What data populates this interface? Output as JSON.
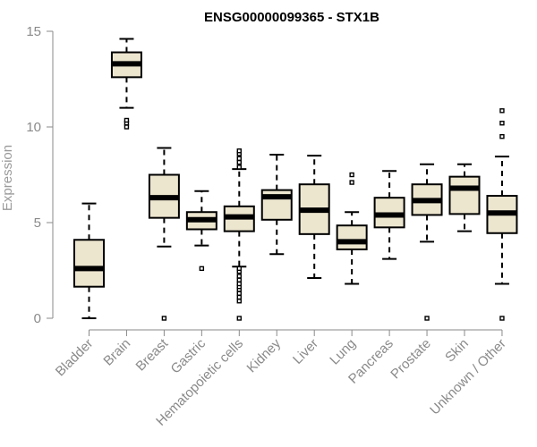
{
  "chart_data": {
    "type": "boxplot",
    "title": "ENSG00000099365 - STX1B",
    "xlabel": "",
    "ylabel": "Expression",
    "ylim": [
      0,
      15
    ],
    "yticks": [
      0,
      5,
      10,
      15
    ],
    "grid": false,
    "colors": {
      "box_fill": "#ede6cf",
      "stroke": "#000000",
      "axis": "#8a8a8a"
    },
    "categories": [
      "Bladder",
      "Brain",
      "Breast",
      "Gastric",
      "Hematopoietic cells",
      "Kidney",
      "Liver",
      "Lung",
      "Pancreas",
      "Prostate",
      "Skin",
      "Unknown / Other"
    ],
    "boxes": [
      {
        "min": 0.0,
        "q1": 1.65,
        "median": 2.6,
        "q3": 4.1,
        "max": 6.0,
        "outliers": []
      },
      {
        "min": 11.0,
        "q1": 12.6,
        "median": 13.3,
        "q3": 13.9,
        "max": 14.6,
        "outliers": [
          10.0,
          10.2,
          10.35
        ]
      },
      {
        "min": 3.75,
        "q1": 5.25,
        "median": 6.3,
        "q3": 7.5,
        "max": 8.9,
        "outliers": [
          0.0
        ]
      },
      {
        "min": 3.8,
        "q1": 4.65,
        "median": 5.15,
        "q3": 5.55,
        "max": 6.65,
        "outliers": [
          2.6
        ]
      },
      {
        "min": 2.7,
        "q1": 4.55,
        "median": 5.3,
        "q3": 5.85,
        "max": 7.8,
        "outliers": [
          0.0,
          0.9,
          1.1,
          1.3,
          1.5,
          1.65,
          1.8,
          2.0,
          2.2,
          2.45,
          2.6,
          7.9,
          8.15,
          8.35,
          8.6,
          8.75
        ]
      },
      {
        "min": 3.35,
        "q1": 5.15,
        "median": 6.35,
        "q3": 6.7,
        "max": 8.55,
        "outliers": []
      },
      {
        "min": 2.1,
        "q1": 4.4,
        "median": 5.65,
        "q3": 7.0,
        "max": 8.5,
        "outliers": []
      },
      {
        "min": 1.8,
        "q1": 3.6,
        "median": 4.0,
        "q3": 4.85,
        "max": 5.55,
        "outliers": [
          7.1,
          7.5
        ]
      },
      {
        "min": 3.1,
        "q1": 4.75,
        "median": 5.4,
        "q3": 6.3,
        "max": 7.7,
        "outliers": []
      },
      {
        "min": 4.0,
        "q1": 5.4,
        "median": 6.15,
        "q3": 7.0,
        "max": 8.05,
        "outliers": [
          0.0
        ]
      },
      {
        "min": 4.55,
        "q1": 5.45,
        "median": 6.8,
        "q3": 7.4,
        "max": 8.05,
        "outliers": []
      },
      {
        "min": 1.8,
        "q1": 4.45,
        "median": 5.5,
        "q3": 6.4,
        "max": 8.45,
        "outliers": [
          0.0,
          9.5,
          10.2,
          10.85
        ]
      }
    ]
  }
}
